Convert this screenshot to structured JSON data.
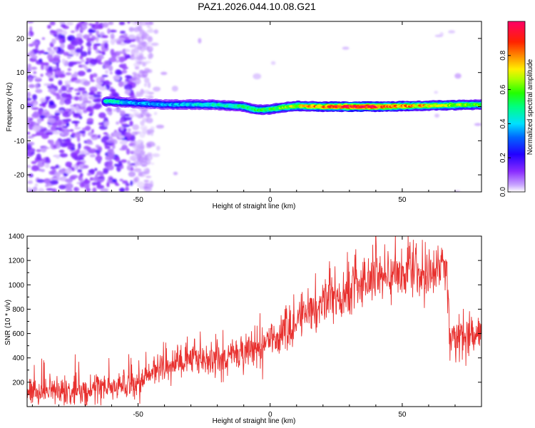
{
  "page": {
    "title": "PAZ1.2026.044.10.08.G21"
  },
  "colors": {
    "background": "#ffffff",
    "snr_line": "#e8302e",
    "axis": "#000000"
  },
  "chart_data": [
    {
      "type": "heatmap",
      "xlabel": "Height of straight line (km)",
      "ylabel": "Frequency (Hz)",
      "xlim": [
        -92,
        80
      ],
      "ylim": [
        -25,
        25
      ],
      "xticks": [
        -50,
        0,
        50
      ],
      "yticks": [
        20,
        10,
        0,
        -10,
        -20
      ],
      "xtick_labels": [
        "-50",
        "0",
        "50"
      ],
      "ytick_labels": [
        "20",
        "10",
        "0",
        "-10",
        "-20"
      ],
      "ridge": {
        "description_points": [
          {
            "x": -60,
            "f": 1.5
          },
          {
            "x": -50,
            "f": 1.0
          },
          {
            "x": -40,
            "f": 0.6
          },
          {
            "x": -30,
            "f": 0.6
          },
          {
            "x": -20,
            "f": 0.5
          },
          {
            "x": -10,
            "f": 0.0
          },
          {
            "x": -5,
            "f": -1.0
          },
          {
            "x": 0,
            "f": -0.8
          },
          {
            "x": 5,
            "f": -0.2
          },
          {
            "x": 10,
            "f": 0.2
          },
          {
            "x": 20,
            "f": 0.0
          },
          {
            "x": 40,
            "f": 0.0
          },
          {
            "x": 60,
            "f": 0.3
          },
          {
            "x": 80,
            "f": 0.6
          }
        ],
        "amplitude": [
          {
            "x": -60,
            "a": 0.45
          },
          {
            "x": -50,
            "a": 0.35
          },
          {
            "x": -40,
            "a": 0.35
          },
          {
            "x": -20,
            "a": 0.45
          },
          {
            "x": 0,
            "a": 0.55
          },
          {
            "x": 20,
            "a": 0.8
          },
          {
            "x": 35,
            "a": 0.95
          },
          {
            "x": 50,
            "a": 0.8
          },
          {
            "x": 80,
            "a": 0.55
          }
        ]
      },
      "colorbar": {
        "label": "Normalized spectral amplitude",
        "range": [
          0.0,
          1.0
        ],
        "ticks": [
          0.0,
          0.2,
          0.4,
          0.6,
          0.8
        ],
        "tick_labels": [
          "0.0",
          "0.2",
          "0.4",
          "0.6",
          "0.8"
        ]
      }
    },
    {
      "type": "line",
      "xlabel": "Height of straight line (km)",
      "ylabel": "SNR (10 * v/v)",
      "xlim": [
        -92,
        80
      ],
      "ylim": [
        0,
        1400
      ],
      "xticks": [
        -50,
        0,
        50
      ],
      "yticks": [
        200,
        400,
        600,
        800,
        1000,
        1200,
        1400
      ],
      "xtick_labels": [
        "-50",
        "0",
        "50"
      ],
      "ytick_labels": [
        "200",
        "400",
        "600",
        "800",
        "1000",
        "1200",
        "1400"
      ],
      "trend": [
        {
          "x": -92,
          "y": 120
        },
        {
          "x": -70,
          "y": 120
        },
        {
          "x": -60,
          "y": 160
        },
        {
          "x": -50,
          "y": 200
        },
        {
          "x": -40,
          "y": 320
        },
        {
          "x": -30,
          "y": 400
        },
        {
          "x": -20,
          "y": 380
        },
        {
          "x": -10,
          "y": 430
        },
        {
          "x": 0,
          "y": 530
        },
        {
          "x": 10,
          "y": 700
        },
        {
          "x": 20,
          "y": 850
        },
        {
          "x": 30,
          "y": 950
        },
        {
          "x": 40,
          "y": 1070
        },
        {
          "x": 50,
          "y": 1080
        },
        {
          "x": 67,
          "y": 1100
        },
        {
          "x": 68,
          "y": 580
        },
        {
          "x": 80,
          "y": 600
        }
      ],
      "series": [
        {
          "name": "SNR",
          "samples": 1400,
          "noise_amplitude": 90,
          "peak": {
            "x": 40,
            "y": 1400
          }
        }
      ]
    }
  ]
}
